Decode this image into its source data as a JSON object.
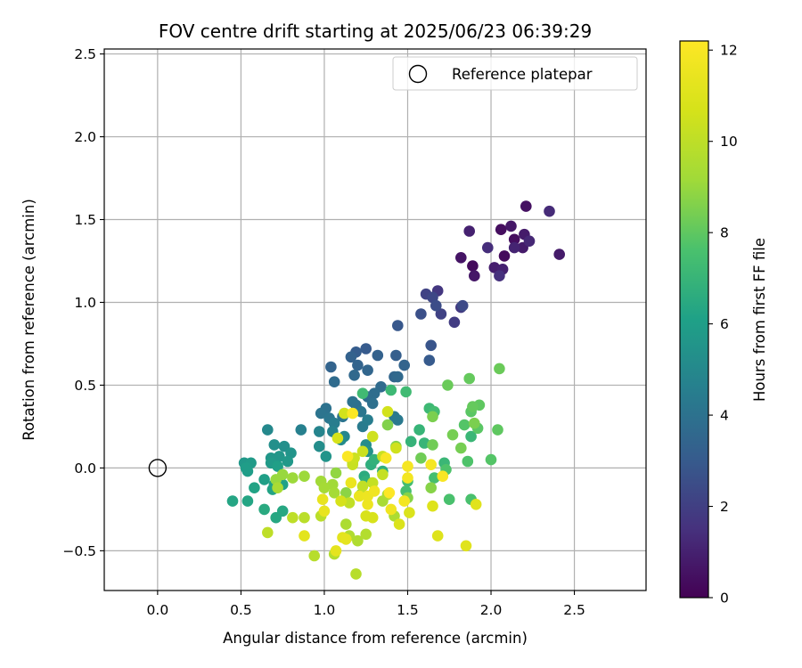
{
  "chart_data": {
    "type": "scatter",
    "title": "FOV centre drift starting at 2025/06/23 06:39:29",
    "xlabel": "Angular distance from reference (arcmin)",
    "ylabel": "Rotation from reference (arcmin)",
    "xlim": [
      -0.32,
      2.93
    ],
    "ylim": [
      -0.74,
      2.53
    ],
    "xticks": [
      0.0,
      0.5,
      1.0,
      1.5,
      2.0,
      2.5
    ],
    "xtick_labels": [
      "0.0",
      "0.5",
      "1.0",
      "1.5",
      "2.0",
      "2.5"
    ],
    "yticks": [
      -0.5,
      0.0,
      0.5,
      1.0,
      1.5,
      2.0,
      2.5
    ],
    "ytick_labels": [
      "−0.5",
      "0.0",
      "0.5",
      "1.0",
      "1.5",
      "2.0",
      "2.5"
    ],
    "grid": true,
    "legend": {
      "placement": "top-right",
      "entries": [
        "Reference platepar"
      ]
    },
    "reference_point": {
      "x": 0.0,
      "y": 0.0
    },
    "colorbar": {
      "label": "Hours from first FF file",
      "colormap": "viridis",
      "min": 0,
      "max": 12.2,
      "ticks": [
        0,
        2,
        4,
        6,
        8,
        10,
        12
      ],
      "tick_labels": [
        "0",
        "2",
        "4",
        "6",
        "8",
        "10",
        "12"
      ]
    },
    "points": [
      {
        "x": 1.89,
        "y": 1.22,
        "h": 0.3
      },
      {
        "x": 2.08,
        "y": 1.28,
        "h": 0.3
      },
      {
        "x": 2.06,
        "y": 1.44,
        "h": 0.4
      },
      {
        "x": 2.14,
        "y": 1.38,
        "h": 0.4
      },
      {
        "x": 2.21,
        "y": 1.58,
        "h": 0.5
      },
      {
        "x": 1.82,
        "y": 1.27,
        "h": 0.6
      },
      {
        "x": 1.9,
        "y": 1.16,
        "h": 0.7
      },
      {
        "x": 2.12,
        "y": 1.46,
        "h": 0.7
      },
      {
        "x": 2.2,
        "y": 1.41,
        "h": 0.8
      },
      {
        "x": 2.19,
        "y": 1.33,
        "h": 0.8
      },
      {
        "x": 2.41,
        "y": 1.29,
        "h": 0.8
      },
      {
        "x": 2.02,
        "y": 1.21,
        "h": 0.9
      },
      {
        "x": 2.07,
        "y": 1.2,
        "h": 1.0
      },
      {
        "x": 1.87,
        "y": 1.43,
        "h": 1.0
      },
      {
        "x": 2.14,
        "y": 1.33,
        "h": 1.1
      },
      {
        "x": 2.23,
        "y": 1.37,
        "h": 1.2
      },
      {
        "x": 2.35,
        "y": 1.55,
        "h": 1.3
      },
      {
        "x": 1.98,
        "y": 1.33,
        "h": 1.4
      },
      {
        "x": 2.05,
        "y": 1.16,
        "h": 1.5
      },
      {
        "x": 1.68,
        "y": 1.07,
        "h": 1.7
      },
      {
        "x": 1.82,
        "y": 0.97,
        "h": 1.8
      },
      {
        "x": 1.78,
        "y": 0.88,
        "h": 1.9
      },
      {
        "x": 1.7,
        "y": 0.93,
        "h": 2.1
      },
      {
        "x": 1.61,
        "y": 1.05,
        "h": 2.1
      },
      {
        "x": 1.65,
        "y": 1.03,
        "h": 2.3
      },
      {
        "x": 1.83,
        "y": 0.98,
        "h": 2.4
      },
      {
        "x": 1.67,
        "y": 0.98,
        "h": 2.5
      },
      {
        "x": 1.58,
        "y": 0.93,
        "h": 2.6
      },
      {
        "x": 1.64,
        "y": 0.74,
        "h": 2.8
      },
      {
        "x": 1.44,
        "y": 0.86,
        "h": 2.9
      },
      {
        "x": 1.63,
        "y": 0.65,
        "h": 3.0
      },
      {
        "x": 1.25,
        "y": 0.72,
        "h": 3.0
      },
      {
        "x": 1.19,
        "y": 0.7,
        "h": 3.1
      },
      {
        "x": 1.43,
        "y": 0.68,
        "h": 3.2
      },
      {
        "x": 1.16,
        "y": 0.67,
        "h": 3.3
      },
      {
        "x": 1.32,
        "y": 0.68,
        "h": 3.3
      },
      {
        "x": 1.2,
        "y": 0.62,
        "h": 3.4
      },
      {
        "x": 1.04,
        "y": 0.61,
        "h": 3.4
      },
      {
        "x": 1.48,
        "y": 0.62,
        "h": 3.4
      },
      {
        "x": 1.26,
        "y": 0.59,
        "h": 3.5
      },
      {
        "x": 1.42,
        "y": 0.55,
        "h": 3.5
      },
      {
        "x": 1.18,
        "y": 0.56,
        "h": 3.6
      },
      {
        "x": 1.44,
        "y": 0.55,
        "h": 3.6
      },
      {
        "x": 1.06,
        "y": 0.52,
        "h": 3.7
      },
      {
        "x": 1.34,
        "y": 0.49,
        "h": 3.7
      },
      {
        "x": 1.3,
        "y": 0.45,
        "h": 3.8
      },
      {
        "x": 1.26,
        "y": 0.43,
        "h": 3.8
      },
      {
        "x": 1.29,
        "y": 0.39,
        "h": 3.9
      },
      {
        "x": 1.19,
        "y": 0.38,
        "h": 3.9
      },
      {
        "x": 1.17,
        "y": 0.4,
        "h": 4.0
      },
      {
        "x": 1.01,
        "y": 0.36,
        "h": 4.0
      },
      {
        "x": 1.11,
        "y": 0.31,
        "h": 4.1
      },
      {
        "x": 0.98,
        "y": 0.33,
        "h": 4.1
      },
      {
        "x": 1.22,
        "y": 0.34,
        "h": 4.2
      },
      {
        "x": 1.03,
        "y": 0.3,
        "h": 4.2
      },
      {
        "x": 1.42,
        "y": 0.31,
        "h": 4.3
      },
      {
        "x": 1.44,
        "y": 0.29,
        "h": 4.3
      },
      {
        "x": 1.23,
        "y": 0.25,
        "h": 4.4
      },
      {
        "x": 1.06,
        "y": 0.27,
        "h": 4.5
      },
      {
        "x": 1.26,
        "y": 0.29,
        "h": 4.5
      },
      {
        "x": 0.86,
        "y": 0.23,
        "h": 4.6
      },
      {
        "x": 1.05,
        "y": 0.22,
        "h": 4.7
      },
      {
        "x": 0.97,
        "y": 0.22,
        "h": 4.8
      },
      {
        "x": 1.12,
        "y": 0.19,
        "h": 4.9
      },
      {
        "x": 0.66,
        "y": 0.23,
        "h": 5.0
      },
      {
        "x": 1.1,
        "y": 0.17,
        "h": 5.1
      },
      {
        "x": 0.97,
        "y": 0.13,
        "h": 5.2
      },
      {
        "x": 1.25,
        "y": 0.14,
        "h": 5.2
      },
      {
        "x": 0.7,
        "y": 0.14,
        "h": 5.3
      },
      {
        "x": 0.76,
        "y": 0.13,
        "h": 5.3
      },
      {
        "x": 1.26,
        "y": 0.1,
        "h": 5.4
      },
      {
        "x": 0.8,
        "y": 0.09,
        "h": 5.5
      },
      {
        "x": 1.01,
        "y": 0.07,
        "h": 5.5
      },
      {
        "x": 0.68,
        "y": 0.06,
        "h": 5.6
      },
      {
        "x": 0.73,
        "y": 0.07,
        "h": 5.6
      },
      {
        "x": 0.78,
        "y": 0.04,
        "h": 5.7
      },
      {
        "x": 0.52,
        "y": 0.03,
        "h": 5.7
      },
      {
        "x": 0.56,
        "y": 0.03,
        "h": 5.8
      },
      {
        "x": 0.68,
        "y": 0.03,
        "h": 5.8
      },
      {
        "x": 0.53,
        "y": 0.0,
        "h": 5.9
      },
      {
        "x": 0.54,
        "y": -0.02,
        "h": 5.9
      },
      {
        "x": 0.72,
        "y": 0.01,
        "h": 6.0
      },
      {
        "x": 0.64,
        "y": -0.07,
        "h": 6.0
      },
      {
        "x": 0.7,
        "y": -0.1,
        "h": 6.1
      },
      {
        "x": 0.75,
        "y": -0.1,
        "h": 6.1
      },
      {
        "x": 0.58,
        "y": -0.12,
        "h": 6.2
      },
      {
        "x": 0.69,
        "y": -0.13,
        "h": 6.2
      },
      {
        "x": 0.45,
        "y": -0.2,
        "h": 6.3
      },
      {
        "x": 0.54,
        "y": -0.2,
        "h": 6.3
      },
      {
        "x": 0.75,
        "y": -0.26,
        "h": 6.4
      },
      {
        "x": 0.71,
        "y": -0.3,
        "h": 6.4
      },
      {
        "x": 0.64,
        "y": -0.25,
        "h": 6.5
      },
      {
        "x": 1.24,
        "y": -0.05,
        "h": 6.6
      },
      {
        "x": 1.35,
        "y": -0.02,
        "h": 6.7
      },
      {
        "x": 1.28,
        "y": 0.02,
        "h": 6.7
      },
      {
        "x": 1.3,
        "y": 0.05,
        "h": 6.8
      },
      {
        "x": 1.25,
        "y": -0.08,
        "h": 6.8
      },
      {
        "x": 1.52,
        "y": 0.16,
        "h": 6.9
      },
      {
        "x": 1.6,
        "y": 0.15,
        "h": 7.0
      },
      {
        "x": 1.57,
        "y": 0.23,
        "h": 7.0
      },
      {
        "x": 1.72,
        "y": 0.03,
        "h": 7.1
      },
      {
        "x": 1.88,
        "y": 0.19,
        "h": 7.1
      },
      {
        "x": 1.63,
        "y": 0.36,
        "h": 7.2
      },
      {
        "x": 1.4,
        "y": 0.47,
        "h": 7.2
      },
      {
        "x": 1.49,
        "y": 0.46,
        "h": 7.3
      },
      {
        "x": 1.23,
        "y": 0.45,
        "h": 7.3
      },
      {
        "x": 1.66,
        "y": 0.34,
        "h": 7.4
      },
      {
        "x": 1.5,
        "y": -0.08,
        "h": 7.4
      },
      {
        "x": 1.49,
        "y": -0.14,
        "h": 7.5
      },
      {
        "x": 1.66,
        "y": -0.06,
        "h": 7.5
      },
      {
        "x": 1.75,
        "y": -0.19,
        "h": 7.6
      },
      {
        "x": 1.88,
        "y": -0.19,
        "h": 7.6
      },
      {
        "x": 1.73,
        "y": -0.01,
        "h": 7.7
      },
      {
        "x": 1.86,
        "y": 0.04,
        "h": 7.7
      },
      {
        "x": 2.0,
        "y": 0.05,
        "h": 7.8
      },
      {
        "x": 1.84,
        "y": 0.26,
        "h": 7.8
      },
      {
        "x": 1.92,
        "y": 0.24,
        "h": 7.9
      },
      {
        "x": 1.88,
        "y": 0.34,
        "h": 7.9
      },
      {
        "x": 1.93,
        "y": 0.38,
        "h": 8.0
      },
      {
        "x": 2.04,
        "y": 0.23,
        "h": 8.0
      },
      {
        "x": 1.89,
        "y": 0.37,
        "h": 8.1
      },
      {
        "x": 1.87,
        "y": 0.54,
        "h": 8.1
      },
      {
        "x": 1.74,
        "y": 0.5,
        "h": 8.2
      },
      {
        "x": 2.05,
        "y": 0.6,
        "h": 8.2
      },
      {
        "x": 1.58,
        "y": 0.06,
        "h": 8.3
      },
      {
        "x": 1.65,
        "y": 0.14,
        "h": 8.3
      },
      {
        "x": 1.77,
        "y": 0.2,
        "h": 8.4
      },
      {
        "x": 1.82,
        "y": 0.12,
        "h": 8.4
      },
      {
        "x": 1.9,
        "y": 0.27,
        "h": 8.5
      },
      {
        "x": 1.65,
        "y": 0.31,
        "h": 8.5
      },
      {
        "x": 1.38,
        "y": 0.26,
        "h": 8.6
      },
      {
        "x": 1.43,
        "y": 0.13,
        "h": 8.6
      },
      {
        "x": 1.64,
        "y": -0.12,
        "h": 8.7
      },
      {
        "x": 1.5,
        "y": -0.18,
        "h": 8.7
      },
      {
        "x": 1.22,
        "y": -0.16,
        "h": 8.8
      },
      {
        "x": 1.13,
        "y": -0.15,
        "h": 8.8
      },
      {
        "x": 1.07,
        "y": -0.03,
        "h": 8.9
      },
      {
        "x": 1.17,
        "y": 0.03,
        "h": 8.9
      },
      {
        "x": 0.75,
        "y": -0.04,
        "h": 9.0
      },
      {
        "x": 0.71,
        "y": -0.07,
        "h": 9.0
      },
      {
        "x": 0.81,
        "y": -0.06,
        "h": 9.1
      },
      {
        "x": 0.88,
        "y": -0.05,
        "h": 9.1
      },
      {
        "x": 1.05,
        "y": -0.1,
        "h": 9.2
      },
      {
        "x": 0.98,
        "y": -0.08,
        "h": 9.2
      },
      {
        "x": 1.0,
        "y": -0.12,
        "h": 9.3
      },
      {
        "x": 1.06,
        "y": -0.15,
        "h": 9.3
      },
      {
        "x": 0.72,
        "y": -0.12,
        "h": 9.4
      },
      {
        "x": 1.35,
        "y": -0.2,
        "h": 9.4
      },
      {
        "x": 1.38,
        "y": -0.16,
        "h": 9.5
      },
      {
        "x": 1.42,
        "y": -0.29,
        "h": 9.5
      },
      {
        "x": 1.13,
        "y": -0.34,
        "h": 9.5
      },
      {
        "x": 1.15,
        "y": -0.41,
        "h": 9.6
      },
      {
        "x": 1.2,
        "y": -0.44,
        "h": 9.6
      },
      {
        "x": 1.25,
        "y": -0.4,
        "h": 9.7
      },
      {
        "x": 1.06,
        "y": -0.52,
        "h": 9.7
      },
      {
        "x": 0.94,
        "y": -0.53,
        "h": 9.8
      },
      {
        "x": 1.19,
        "y": -0.64,
        "h": 9.8
      },
      {
        "x": 0.98,
        "y": -0.29,
        "h": 9.9
      },
      {
        "x": 0.88,
        "y": -0.3,
        "h": 9.9
      },
      {
        "x": 0.66,
        "y": -0.39,
        "h": 10.0
      },
      {
        "x": 0.81,
        "y": -0.3,
        "h": 10.0
      },
      {
        "x": 1.15,
        "y": -0.21,
        "h": 10.1
      },
      {
        "x": 1.23,
        "y": -0.11,
        "h": 10.1
      },
      {
        "x": 1.29,
        "y": -0.09,
        "h": 10.2
      },
      {
        "x": 1.35,
        "y": -0.04,
        "h": 10.2
      },
      {
        "x": 1.17,
        "y": 0.02,
        "h": 10.3
      },
      {
        "x": 1.35,
        "y": 0.07,
        "h": 10.3
      },
      {
        "x": 1.23,
        "y": 0.1,
        "h": 10.4
      },
      {
        "x": 1.18,
        "y": 0.06,
        "h": 10.4
      },
      {
        "x": 1.43,
        "y": 0.12,
        "h": 10.5
      },
      {
        "x": 1.29,
        "y": 0.19,
        "h": 10.5
      },
      {
        "x": 1.38,
        "y": 0.34,
        "h": 10.6
      },
      {
        "x": 1.12,
        "y": 0.33,
        "h": 10.6
      },
      {
        "x": 1.08,
        "y": 0.18,
        "h": 10.7
      },
      {
        "x": 1.1,
        "y": -0.2,
        "h": 10.7
      },
      {
        "x": 1.25,
        "y": -0.29,
        "h": 10.8
      },
      {
        "x": 1.29,
        "y": -0.3,
        "h": 10.8
      },
      {
        "x": 1.45,
        "y": -0.34,
        "h": 10.9
      },
      {
        "x": 1.51,
        "y": -0.27,
        "h": 10.9
      },
      {
        "x": 1.65,
        "y": -0.23,
        "h": 11.0
      },
      {
        "x": 1.68,
        "y": -0.41,
        "h": 11.0
      },
      {
        "x": 1.85,
        "y": -0.47,
        "h": 11.1
      },
      {
        "x": 1.91,
        "y": -0.22,
        "h": 11.1
      },
      {
        "x": 0.88,
        "y": -0.41,
        "h": 11.2
      },
      {
        "x": 1.11,
        "y": -0.42,
        "h": 11.2
      },
      {
        "x": 1.07,
        "y": -0.5,
        "h": 11.3
      },
      {
        "x": 1.13,
        "y": -0.43,
        "h": 11.3
      },
      {
        "x": 1.0,
        "y": -0.26,
        "h": 11.4
      },
      {
        "x": 0.99,
        "y": -0.19,
        "h": 11.4
      },
      {
        "x": 1.16,
        "y": -0.09,
        "h": 11.5
      },
      {
        "x": 1.21,
        "y": -0.17,
        "h": 11.5
      },
      {
        "x": 1.26,
        "y": -0.22,
        "h": 11.6
      },
      {
        "x": 1.26,
        "y": -0.17,
        "h": 11.6
      },
      {
        "x": 1.3,
        "y": -0.14,
        "h": 11.7
      },
      {
        "x": 1.4,
        "y": -0.25,
        "h": 11.7
      },
      {
        "x": 1.48,
        "y": -0.2,
        "h": 11.8
      },
      {
        "x": 1.5,
        "y": -0.06,
        "h": 11.8
      },
      {
        "x": 1.5,
        "y": 0.01,
        "h": 11.9
      },
      {
        "x": 1.64,
        "y": 0.02,
        "h": 11.9
      },
      {
        "x": 1.71,
        "y": -0.05,
        "h": 12.0
      },
      {
        "x": 1.37,
        "y": 0.06,
        "h": 12.0
      },
      {
        "x": 1.14,
        "y": 0.07,
        "h": 12.1
      },
      {
        "x": 1.17,
        "y": 0.33,
        "h": 12.1
      },
      {
        "x": 1.39,
        "y": -0.15,
        "h": 12.2
      }
    ]
  }
}
